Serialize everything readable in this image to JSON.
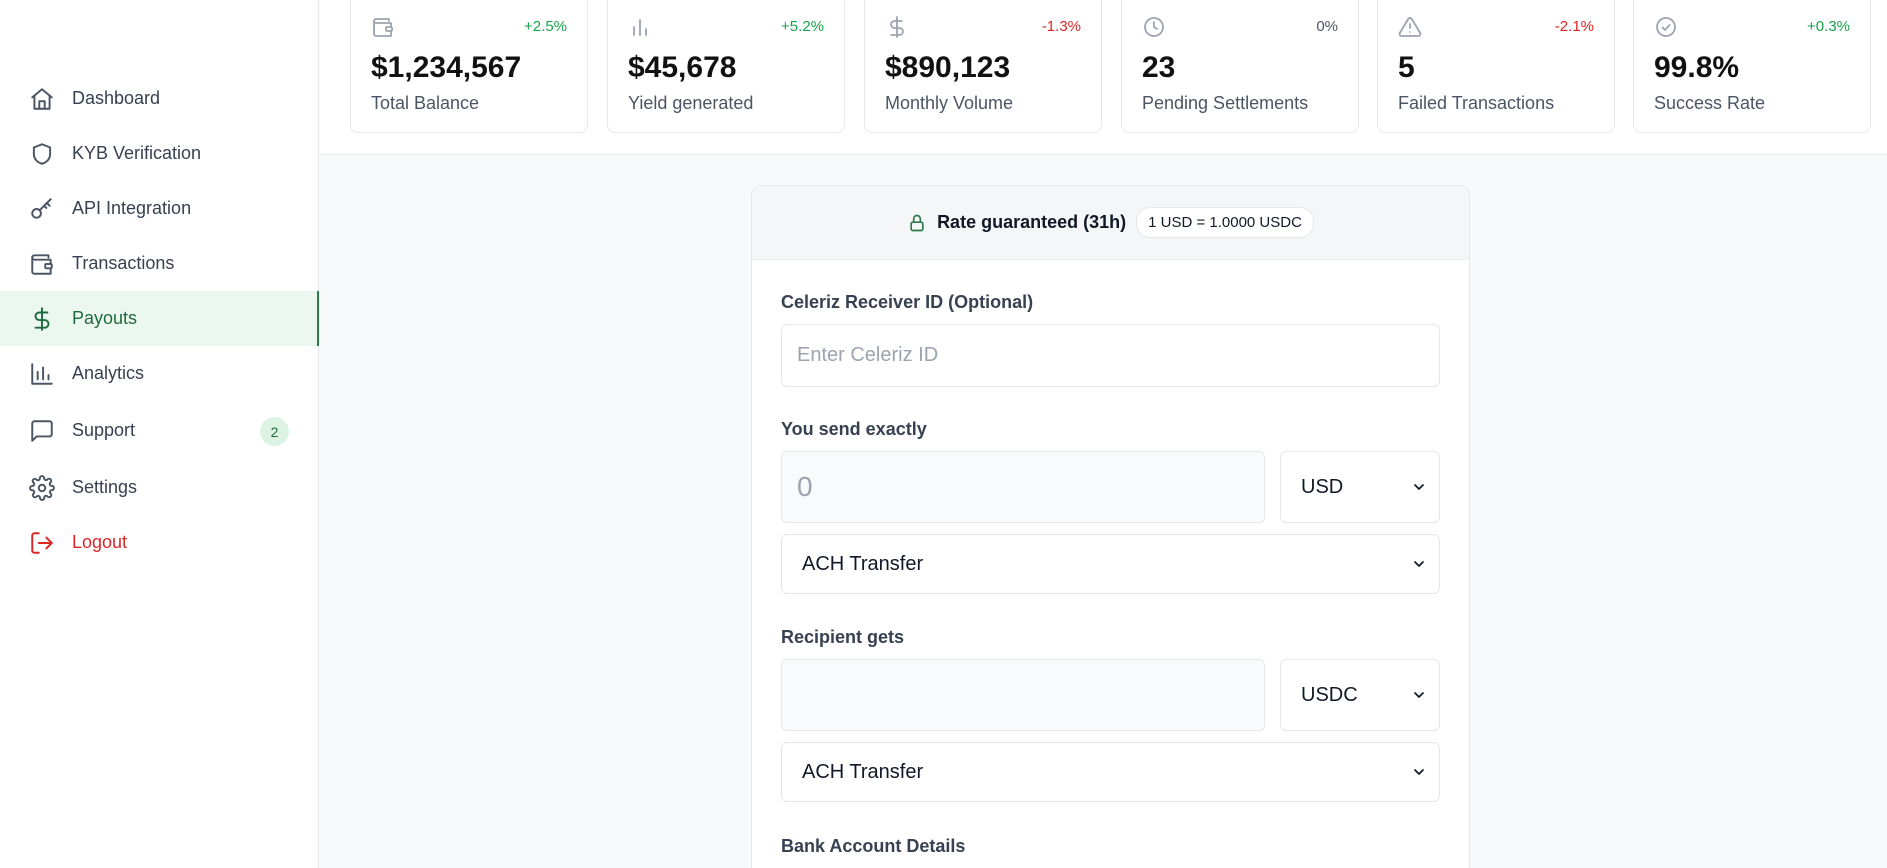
{
  "sidebar": {
    "items": [
      {
        "label": "Dashboard",
        "icon": "home-icon"
      },
      {
        "label": "KYB Verification",
        "icon": "shield-icon"
      },
      {
        "label": "API Integration",
        "icon": "key-icon"
      },
      {
        "label": "Transactions",
        "icon": "wallet-icon"
      },
      {
        "label": "Payouts",
        "icon": "dollar-icon",
        "active": true
      },
      {
        "label": "Analytics",
        "icon": "bar-chart-icon"
      },
      {
        "label": "Support",
        "icon": "message-icon",
        "badge": "2"
      },
      {
        "label": "Settings",
        "icon": "gear-icon"
      },
      {
        "label": "Logout",
        "icon": "logout-icon"
      }
    ]
  },
  "stats": [
    {
      "value": "$1,234,567",
      "label": "Total Balance",
      "change": "+2.5%",
      "icon": "wallet-icon",
      "trend": "positive"
    },
    {
      "value": "$45,678",
      "label": "Yield generated",
      "change": "+5.2%",
      "icon": "bar-chart-icon",
      "trend": "positive"
    },
    {
      "value": "$890,123",
      "label": "Monthly Volume",
      "change": "-1.3%",
      "icon": "dollar-icon",
      "trend": "negative"
    },
    {
      "value": "23",
      "label": "Pending Settlements",
      "change": "0%",
      "icon": "clock-icon",
      "trend": "neutral"
    },
    {
      "value": "5",
      "label": "Failed Transactions",
      "change": "-2.1%",
      "icon": "warning-icon",
      "trend": "negative"
    },
    {
      "value": "99.8%",
      "label": "Success Rate",
      "change": "+0.3%",
      "icon": "check-circle-icon",
      "trend": "positive"
    }
  ],
  "form": {
    "rate_title": "Rate guaranteed (31h)",
    "rate_value": "1 USD = 1.0000 USDC",
    "receiver_label": "Celeriz Receiver ID (Optional)",
    "receiver_placeholder": "Enter Celeriz ID",
    "receiver_value": "",
    "send_label": "You send exactly",
    "send_placeholder": "0",
    "send_value": "",
    "send_currency": "USD",
    "send_method": "ACH Transfer",
    "receive_label": "Recipient gets",
    "receive_value": "",
    "receive_currency": "USDC",
    "receive_method": "ACH Transfer",
    "bank_label": "Bank Account Details"
  },
  "colors": {
    "accent": "#2d7a4b",
    "active_bg": "#ecf7ef",
    "positive": "#16a34a",
    "negative": "#dc2626"
  }
}
